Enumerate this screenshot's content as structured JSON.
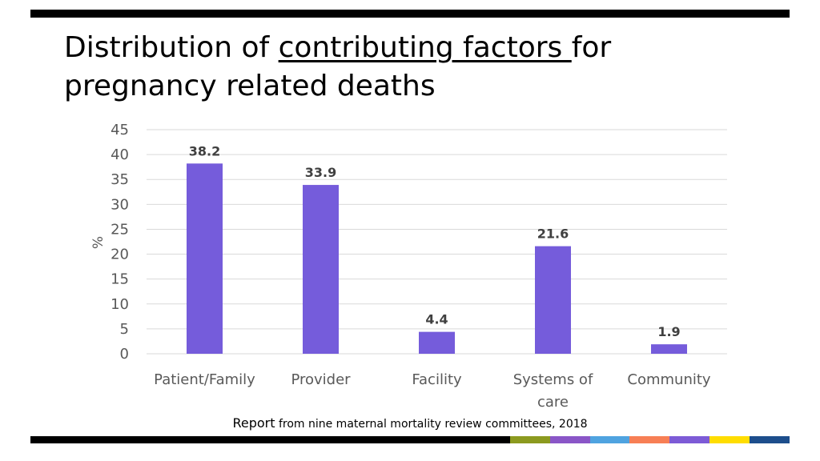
{
  "title": {
    "prefix": "Distribution of ",
    "underlined": "contributing factors ",
    "suffix": "for pregnancy related deaths"
  },
  "source": {
    "lead": "Report",
    "rest": " from nine maternal mortality review committees, 2018"
  },
  "colors": {
    "bar": "#755CDB",
    "grid": "#D9D9D9",
    "axis_text": "#595959",
    "label_text": "#404040",
    "accent_strip": [
      "#8C9A1F",
      "#8A56C7",
      "#4FA3E0",
      "#F77F55",
      "#7D5BD6",
      "#FFDD00",
      "#1D4E8C"
    ]
  },
  "chart_data": {
    "type": "bar",
    "title": "",
    "xlabel": "",
    "ylabel": "%",
    "categories": [
      "Patient/Family",
      "Provider",
      "Facility",
      "Systems of care",
      "Community"
    ],
    "category_lines": [
      [
        "Patient/Family"
      ],
      [
        "Provider"
      ],
      [
        "Facility"
      ],
      [
        "Systems of",
        "care"
      ],
      [
        "Community"
      ]
    ],
    "values": [
      38.2,
      33.9,
      4.4,
      21.6,
      1.9
    ],
    "value_labels": [
      "38.2",
      "33.9",
      "4.4",
      "21.6",
      "1.9"
    ],
    "ylim": [
      0,
      45
    ],
    "yticks": [
      0,
      5,
      10,
      15,
      20,
      25,
      30,
      35,
      40,
      45
    ],
    "grid": true,
    "legend": "none"
  }
}
